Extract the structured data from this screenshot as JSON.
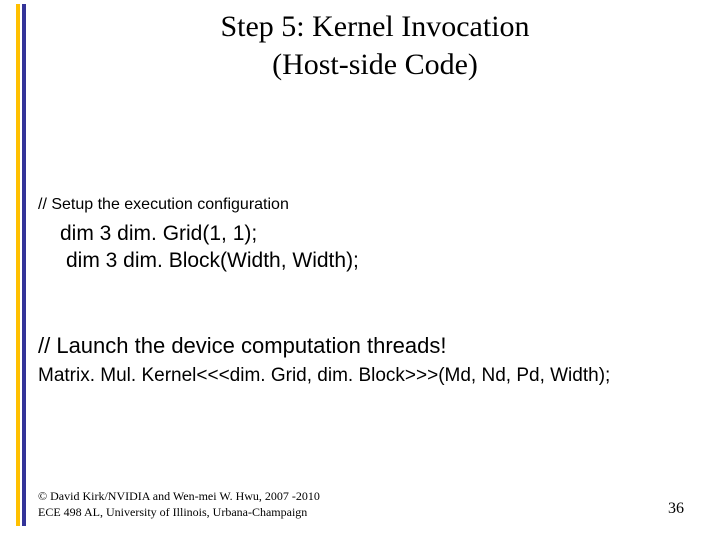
{
  "stripes": {
    "colors": [
      "#ffc000",
      "#333399"
    ]
  },
  "title": {
    "line1": "Step 5: Kernel Invocation",
    "line2": "(Host-side Code)",
    "fontsize": 30,
    "color": "#000000"
  },
  "content": {
    "comment1": "// Setup the execution configuration",
    "code1": "dim 3 dim. Grid(1, 1);",
    "code2": "dim 3 dim. Block(Width, Width);",
    "comment2": "// Launch the device computation threads!",
    "kernelCall": "Matrix. Mul. Kernel<<<dim. Grid, dim. Block>>>(Md, Nd, Pd, Width);"
  },
  "footer": {
    "line1": "© David Kirk/NVIDIA and Wen-mei W. Hwu, 2007 -2010",
    "line2": "ECE 498 AL, University of Illinois, Urbana-Champaign"
  },
  "pageNumber": "36",
  "colors": {
    "background": "#ffffff",
    "text": "#000000"
  }
}
